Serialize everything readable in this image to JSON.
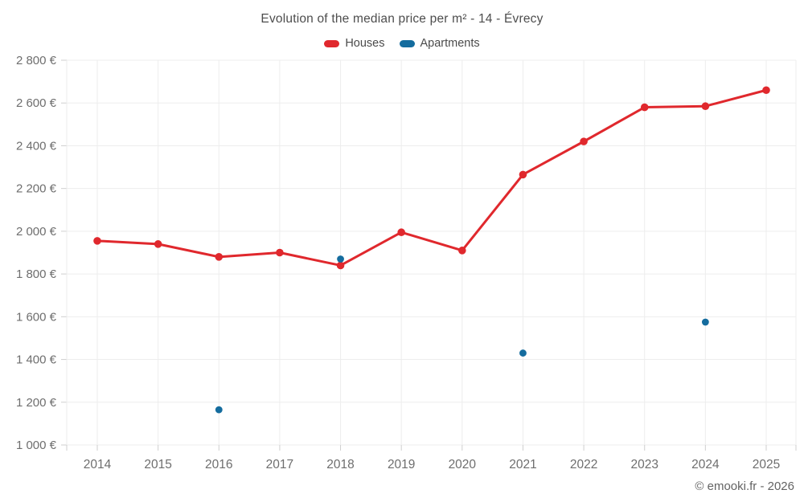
{
  "footer": {
    "copyright": "© emooki.fr - 2026"
  },
  "chart_data": {
    "type": "line",
    "title": "Evolution of the median price per m² - 14 - Évrecy",
    "categories": [
      2014,
      2015,
      2016,
      2017,
      2018,
      2019,
      2020,
      2021,
      2022,
      2023,
      2024,
      2025
    ],
    "x_tick_labels": [
      "2014",
      "2015",
      "2016",
      "2017",
      "2018",
      "2019",
      "2020",
      "2021",
      "2022",
      "2023",
      "2024",
      "2025"
    ],
    "y_tick_labels": [
      "1 000 €",
      "1 200 €",
      "1 400 €",
      "1 600 €",
      "1 800 €",
      "2 000 €",
      "2 200 €",
      "2 400 €",
      "2 600 €",
      "2 800 €"
    ],
    "ylim": [
      1000,
      2800
    ],
    "ytick_step": 200,
    "grid": true,
    "legend_position": "top",
    "currency": "€",
    "series": [
      {
        "name": "Houses",
        "type": "line",
        "color": "#e0282d",
        "data": [
          [
            2014,
            1955
          ],
          [
            2015,
            1940
          ],
          [
            2016,
            1880
          ],
          [
            2017,
            1900
          ],
          [
            2018,
            1840
          ],
          [
            2019,
            1995
          ],
          [
            2020,
            1910
          ],
          [
            2021,
            2265
          ],
          [
            2022,
            2420
          ],
          [
            2023,
            2580
          ],
          [
            2024,
            2585
          ],
          [
            2025,
            2660
          ]
        ]
      },
      {
        "name": "Apartments",
        "type": "scatter",
        "color": "#146c9e",
        "data": [
          [
            2016,
            1165
          ],
          [
            2018,
            1870
          ],
          [
            2021,
            1430
          ],
          [
            2024,
            1575
          ]
        ]
      }
    ],
    "colors": {
      "gridline": "#ededed",
      "tick": "#cfcfcf",
      "axis_label": "#6e6e6e",
      "title": "#4d4d4d"
    }
  }
}
